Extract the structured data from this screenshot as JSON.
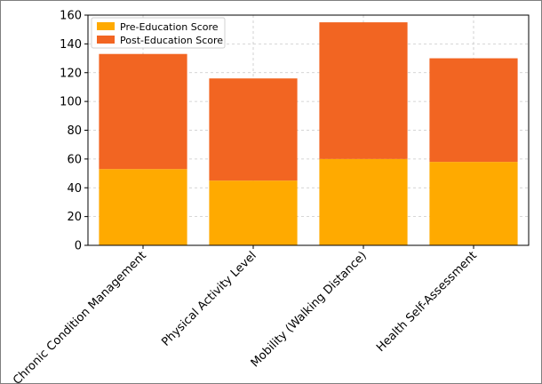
{
  "chart_data": {
    "type": "bar",
    "stacked": true,
    "title": "",
    "xlabel": "",
    "ylabel": "",
    "categories": [
      "Chronic Condition Management",
      "Physical Activity Level",
      "Mobility (Walking Distance)",
      "Health Self-Assessment"
    ],
    "series": [
      {
        "name": "Pre-Education Score",
        "values": [
          53,
          45,
          60,
          58
        ],
        "color": "#FFAA00"
      },
      {
        "name": "Post-Education Score",
        "values": [
          80,
          71,
          95,
          72
        ],
        "color": "#F26522"
      }
    ],
    "ylim": [
      0,
      160
    ],
    "yticks": [
      0,
      20,
      40,
      60,
      80,
      100,
      120,
      140,
      160
    ],
    "grid": true,
    "legend_position": "top-left"
  }
}
